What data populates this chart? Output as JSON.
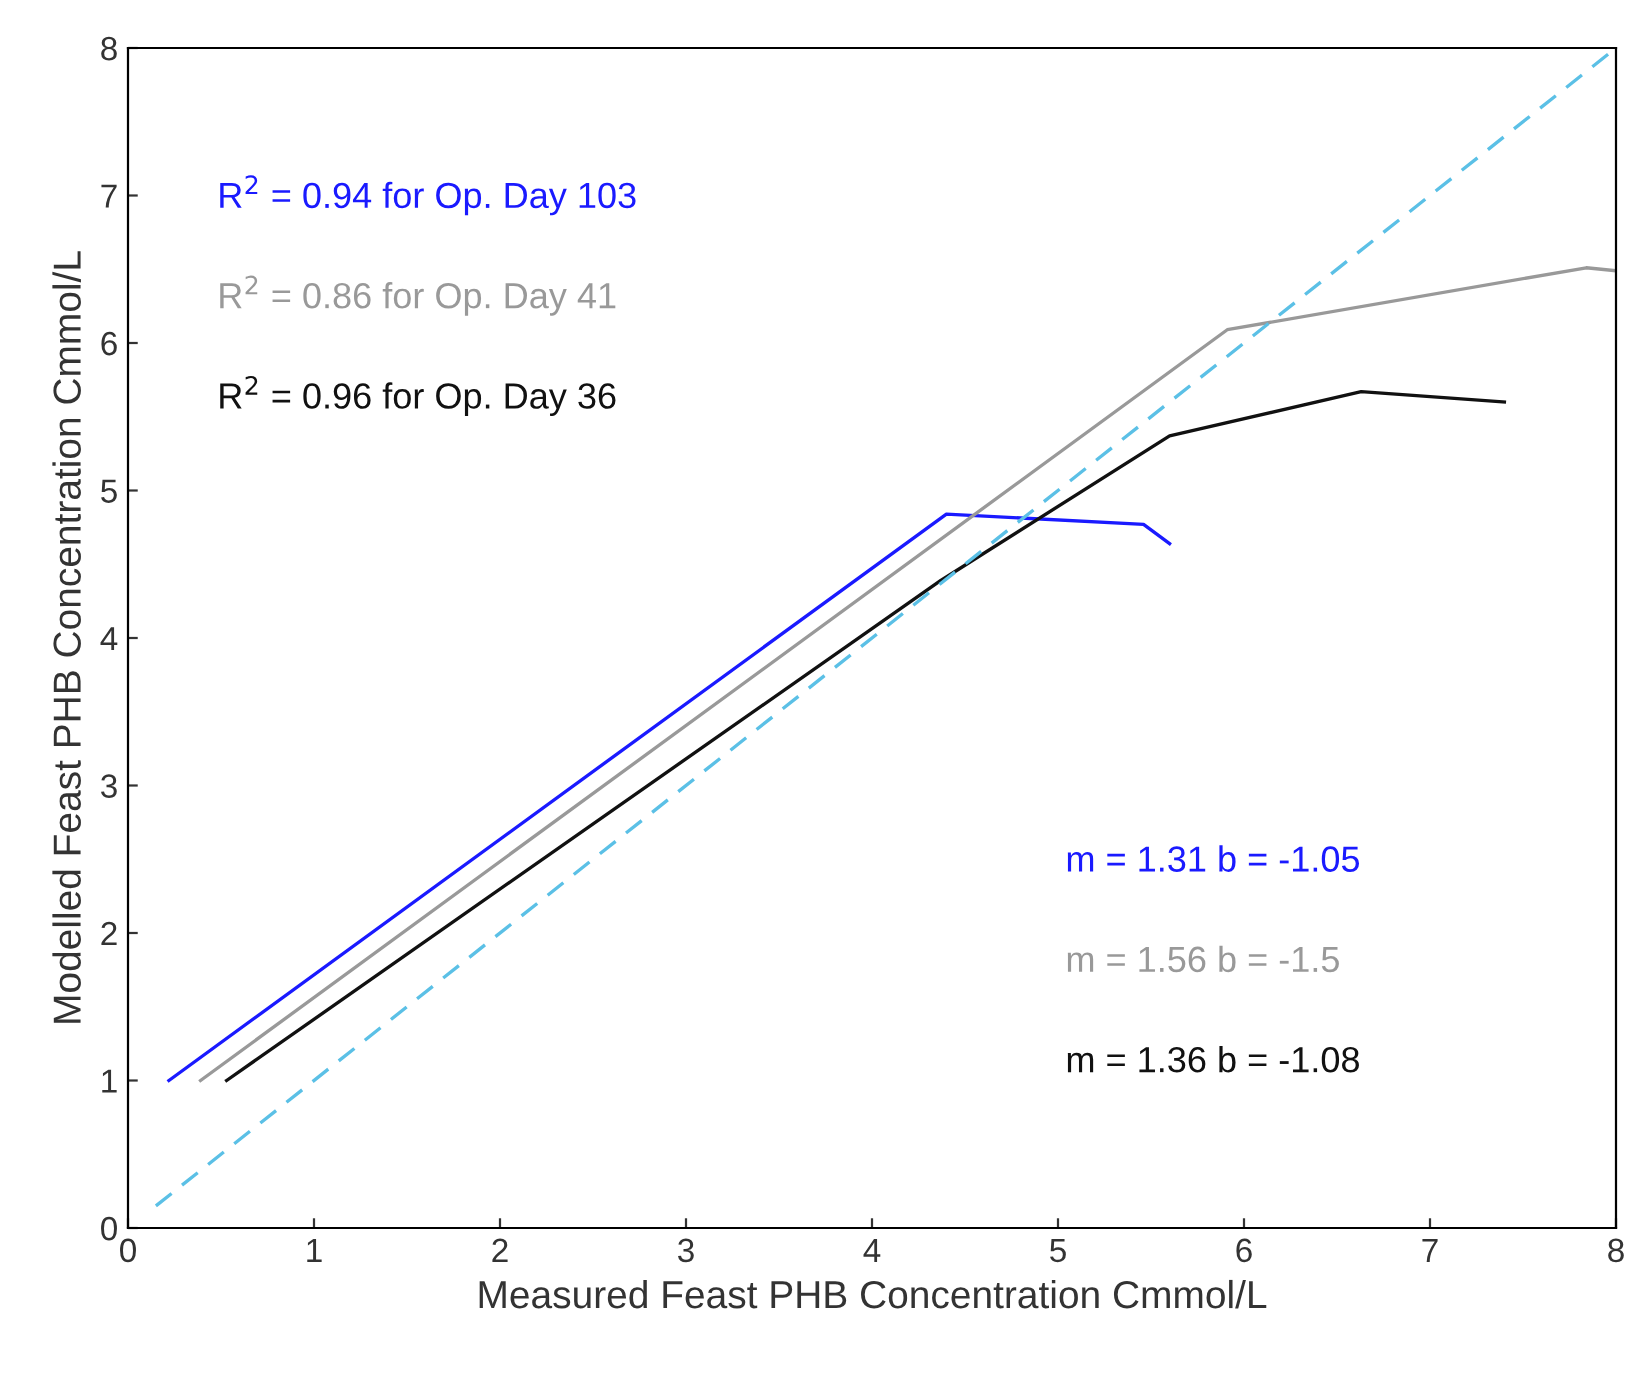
{
  "chart_data": {
    "type": "line",
    "xlabel": "Measured Feast PHB Concentration Cmmol/L",
    "ylabel": "Modelled Feast PHB Concentration Cmmol/L",
    "xlim": [
      0,
      8
    ],
    "ylim": [
      0,
      8
    ],
    "xticks": [
      0,
      1,
      2,
      3,
      4,
      5,
      6,
      7,
      8
    ],
    "yticks": [
      0,
      1,
      2,
      3,
      4,
      5,
      6,
      7,
      8
    ],
    "grid": false,
    "legend": false,
    "series": [
      {
        "color": "#1a1aff",
        "x": [
          0.22,
          4.4,
          5.46,
          5.6
        ],
        "values": [
          1.0,
          4.84,
          4.77,
          4.64
        ]
      },
      {
        "color": "#999999",
        "x": [
          0.39,
          5.91,
          7.84,
          8.0
        ],
        "values": [
          1.0,
          6.09,
          6.51,
          6.49
        ]
      },
      {
        "color": "#111111",
        "x": [
          0.53,
          4.37,
          5.6,
          6.63,
          7.4
        ],
        "values": [
          1.0,
          4.39,
          5.37,
          5.67,
          5.6
        ]
      },
      {
        "color": "#5bc0e6",
        "line_style": "dashed",
        "x": [
          0.15,
          8
        ],
        "values": [
          0.15,
          8
        ]
      }
    ],
    "annotations": [
      "R$^{2}$ = 0.94 for Op. Day 103",
      "R$^{2}$ = 0.86 for Op. Day 41",
      "R$^{2}$ = 0.96 for Op. Day 36",
      "m = 1.31 b = -1.05",
      "m = 1.56 b = -1.5",
      "m = 1.36 b = -1.08"
    ]
  }
}
